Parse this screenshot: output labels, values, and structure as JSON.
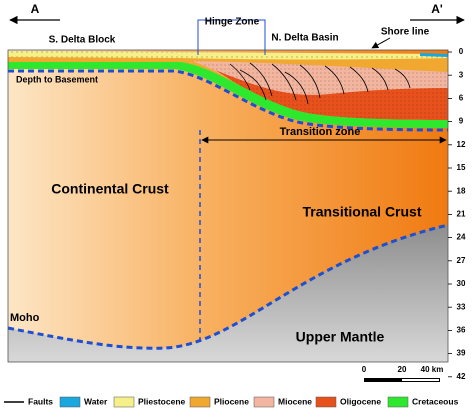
{
  "header": {
    "left_marker": "A",
    "right_marker": "A'"
  },
  "labels": {
    "south_block": "S. Delta Block",
    "hinge": "Hinge Zone",
    "north_basin": "N. Delta Basin",
    "shore": "Shore line",
    "basement": "Depth to Basement",
    "transition": "Transition zone",
    "continental": "Continental Crust",
    "transitional": "Transitional Crust",
    "moho": "Moho",
    "mantle": "Upper Mantle"
  },
  "depth_axis": {
    "ticks": [
      0,
      3,
      6,
      9,
      12,
      15,
      18,
      21,
      24,
      27,
      30,
      33,
      36,
      39,
      42
    ]
  },
  "scale_bar": {
    "labels": [
      "0",
      "20",
      "40 km"
    ]
  },
  "legend": [
    {
      "label": "Faults",
      "color": "#000000"
    },
    {
      "label": "Water",
      "color": "#1aa7e0"
    },
    {
      "label": "Pliestocene",
      "color": "#f5f08a"
    },
    {
      "label": "Pliocene",
      "color": "#f0a830"
    },
    {
      "label": "Miocene",
      "color": "#f2b5a0"
    },
    {
      "label": "Oligocene",
      "color": "#e8501c"
    },
    {
      "label": "Cretaceous",
      "color": "#2ee82e"
    }
  ]
}
